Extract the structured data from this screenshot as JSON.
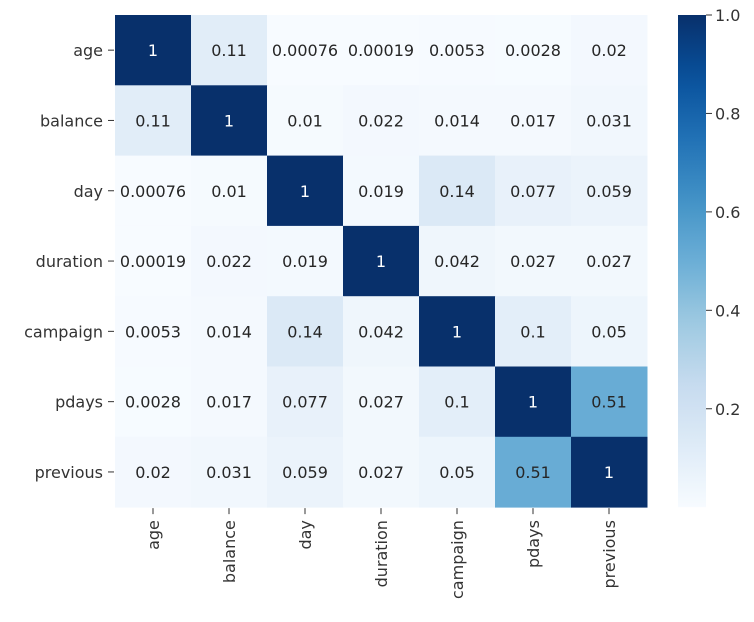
{
  "chart_data": {
    "type": "heatmap",
    "title": "",
    "xlabel": "",
    "ylabel": "",
    "x_labels": [
      "age",
      "balance",
      "day",
      "duration",
      "campaign",
      "pdays",
      "previous"
    ],
    "y_labels": [
      "age",
      "balance",
      "day",
      "duration",
      "campaign",
      "pdays",
      "previous"
    ],
    "values": [
      [
        1,
        0.11,
        0.00076,
        0.00019,
        0.0053,
        0.0028,
        0.02
      ],
      [
        0.11,
        1,
        0.01,
        0.022,
        0.014,
        0.017,
        0.031
      ],
      [
        0.00076,
        0.01,
        1,
        0.019,
        0.14,
        0.077,
        0.059
      ],
      [
        0.00019,
        0.022,
        0.019,
        1,
        0.042,
        0.027,
        0.027
      ],
      [
        0.0053,
        0.014,
        0.14,
        0.042,
        1,
        0.1,
        0.05
      ],
      [
        0.0028,
        0.017,
        0.077,
        0.027,
        0.1,
        1,
        0.51
      ],
      [
        0.02,
        0.031,
        0.059,
        0.027,
        0.05,
        0.51,
        1
      ]
    ],
    "cell_labels": [
      [
        "1",
        "0.11",
        "0.00076",
        "0.00019",
        "0.0053",
        "0.0028",
        "0.02"
      ],
      [
        "0.11",
        "1",
        "0.01",
        "0.022",
        "0.014",
        "0.017",
        "0.031"
      ],
      [
        "0.00076",
        "0.01",
        "1",
        "0.019",
        "0.14",
        "0.077",
        "0.059"
      ],
      [
        "0.00019",
        "0.022",
        "0.019",
        "1",
        "0.042",
        "0.027",
        "0.027"
      ],
      [
        "0.0053",
        "0.014",
        "0.14",
        "0.042",
        "1",
        "0.1",
        "0.05"
      ],
      [
        "0.0028",
        "0.017",
        "0.077",
        "0.027",
        "0.1",
        "1",
        "0.51"
      ],
      [
        "0.02",
        "0.031",
        "0.059",
        "0.027",
        "0.05",
        "0.51",
        "1"
      ]
    ],
    "colormap": "Blues",
    "colorbar": {
      "range": [
        0.00019,
        1
      ],
      "ticks": [
        0.2,
        0.4,
        0.6,
        0.8,
        1.0
      ],
      "tick_labels": [
        "0.2",
        "0.4",
        "0.6",
        "0.8",
        "1.0"
      ]
    },
    "grid": false,
    "legend": "colorbar-right"
  }
}
